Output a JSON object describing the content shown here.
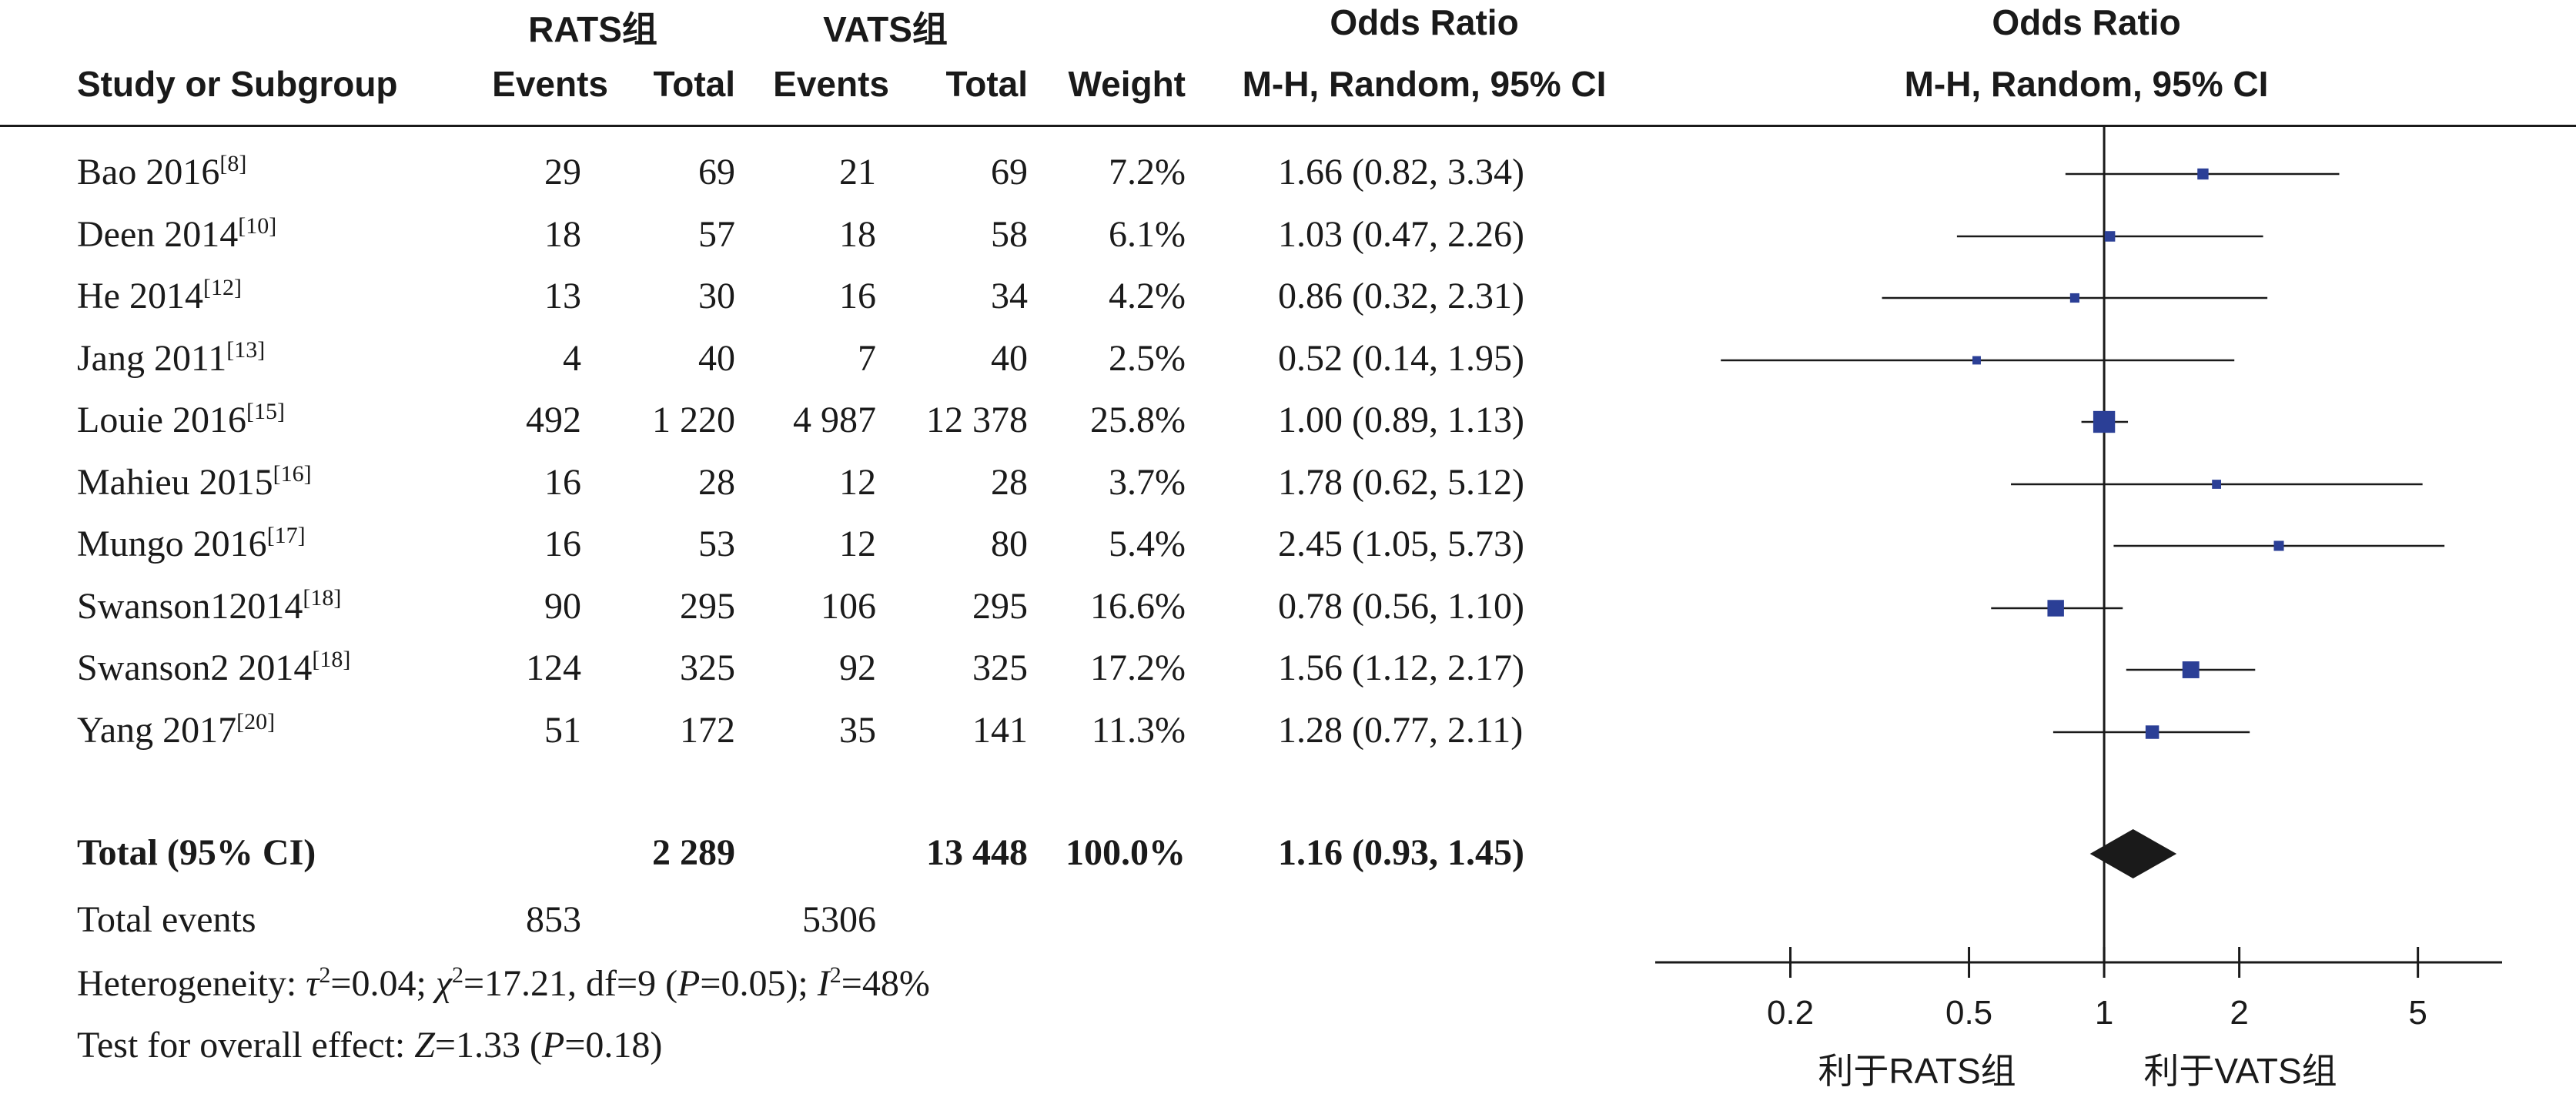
{
  "header": {
    "group1": "RATS组",
    "group2": "VATS组",
    "or_title": "Odds Ratio",
    "col_study": "Study or Subgroup",
    "col_events1": "Events",
    "col_total1": "Total",
    "col_events2": "Events",
    "col_total2": "Total",
    "col_weight": "Weight",
    "col_method": "M-H, Random, 95% CI",
    "plot_title": "Odds Ratio",
    "plot_method": "M-H, Random, 95% CI"
  },
  "studies": [
    {
      "name": "Bao 2016",
      "ref": "[8]",
      "e1": "29",
      "t1": "69",
      "e2": "21",
      "t2": "69",
      "weight": "7.2%",
      "ci_text": "1.66 (0.82, 3.34)"
    },
    {
      "name": "Deen 2014",
      "ref": "[10]",
      "e1": "18",
      "t1": "57",
      "e2": "18",
      "t2": "58",
      "weight": "6.1%",
      "ci_text": "1.03 (0.47, 2.26)"
    },
    {
      "name": "He 2014",
      "ref": "[12]",
      "e1": "13",
      "t1": "30",
      "e2": "16",
      "t2": "34",
      "weight": "4.2%",
      "ci_text": "0.86 (0.32, 2.31)"
    },
    {
      "name": "Jang 2011",
      "ref": "[13]",
      "e1": "4",
      "t1": "40",
      "e2": "7",
      "t2": "40",
      "weight": "2.5%",
      "ci_text": "0.52 (0.14, 1.95)"
    },
    {
      "name": "Louie 2016",
      "ref": "[15]",
      "e1": "492",
      "t1": "1 220",
      "e2": "4 987",
      "t2": "12 378",
      "weight": "25.8%",
      "ci_text": "1.00 (0.89, 1.13)"
    },
    {
      "name": "Mahieu 2015",
      "ref": "[16]",
      "e1": "16",
      "t1": "28",
      "e2": "12",
      "t2": "28",
      "weight": "3.7%",
      "ci_text": "1.78 (0.62, 5.12)"
    },
    {
      "name": "Mungo 2016",
      "ref": "[17]",
      "e1": "16",
      "t1": "53",
      "e2": "12",
      "t2": "80",
      "weight": "5.4%",
      "ci_text": "2.45 (1.05, 5.73)"
    },
    {
      "name": "Swanson12014",
      "ref": "[18]",
      "e1": "90",
      "t1": "295",
      "e2": "106",
      "t2": "295",
      "weight": "16.6%",
      "ci_text": "0.78 (0.56, 1.10)"
    },
    {
      "name": "Swanson2 2014",
      "ref": "[18]",
      "e1": "124",
      "t1": "325",
      "e2": "92",
      "t2": "325",
      "weight": "17.2%",
      "ci_text": "1.56 (1.12, 2.17)"
    },
    {
      "name": "Yang 2017",
      "ref": "[20]",
      "e1": "51",
      "t1": "172",
      "e2": "35",
      "t2": "141",
      "weight": "11.3%",
      "ci_text": "1.28 (0.77, 2.11)"
    }
  ],
  "total": {
    "label": "Total (95% CI)",
    "t1": "2 289",
    "t2": "13 448",
    "weight": "100.0%",
    "ci_text": "1.16 (0.93, 1.45)",
    "events_label": "Total events",
    "events1": "853",
    "events2": "5306"
  },
  "stats": {
    "het_prefix": "Heterogeneity: ",
    "tau_sym": "τ",
    "tau_val": "=0.04; ",
    "chi_sym": "χ",
    "chi_val": "=17.21, df=9 (",
    "p_sym": "P",
    "het_p": "=0.05); ",
    "i_sym": "I",
    "i_val": "=48%",
    "overall_prefix": "Test for overall effect: ",
    "z_sym": "Z",
    "z_val": "=1.33 (",
    "overall_p": "=0.18)"
  },
  "chart_data": {
    "type": "forest",
    "x_scale": "log",
    "xlim": [
      0.1,
      7.7
    ],
    "x_ticks": [
      0.2,
      0.5,
      1,
      2,
      5
    ],
    "x_tick_labels": [
      "0.2",
      "0.5",
      "1",
      "2",
      "5"
    ],
    "favours_left": "利于RATS组",
    "favours_right": "利于VATS组",
    "marker_color": "#2b3f96",
    "diamond_color": "#1a1a1a",
    "points": [
      {
        "or": 1.66,
        "lo": 0.82,
        "hi": 3.34,
        "weight": 7.2
      },
      {
        "or": 1.03,
        "lo": 0.47,
        "hi": 2.26,
        "weight": 6.1
      },
      {
        "or": 0.86,
        "lo": 0.32,
        "hi": 2.31,
        "weight": 4.2
      },
      {
        "or": 0.52,
        "lo": 0.14,
        "hi": 1.95,
        "weight": 2.5
      },
      {
        "or": 1.0,
        "lo": 0.89,
        "hi": 1.13,
        "weight": 25.8
      },
      {
        "or": 1.78,
        "lo": 0.62,
        "hi": 5.12,
        "weight": 3.7
      },
      {
        "or": 2.45,
        "lo": 1.05,
        "hi": 5.73,
        "weight": 5.4
      },
      {
        "or": 0.78,
        "lo": 0.56,
        "hi": 1.1,
        "weight": 16.6
      },
      {
        "or": 1.56,
        "lo": 1.12,
        "hi": 2.17,
        "weight": 17.2
      },
      {
        "or": 1.28,
        "lo": 0.77,
        "hi": 2.11,
        "weight": 11.3
      }
    ],
    "pooled": {
      "or": 1.16,
      "lo": 0.93,
      "hi": 1.45
    }
  }
}
